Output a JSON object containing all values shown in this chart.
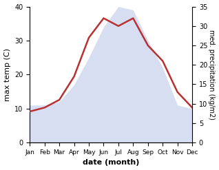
{
  "months": [
    "Jan",
    "Feb",
    "Mar",
    "Apr",
    "May",
    "Jun",
    "Jul",
    "Aug",
    "Sep",
    "Oct",
    "Nov",
    "Dec"
  ],
  "max_temp": [
    11,
    11,
    12,
    17,
    25,
    34,
    40,
    39,
    30,
    22,
    11,
    10
  ],
  "precipitation": [
    8,
    9,
    11,
    17,
    27,
    32,
    30,
    32,
    25,
    21,
    13,
    9
  ],
  "temp_fill_color": "#b8c4e8",
  "temp_fill_alpha": 0.55,
  "precip_color": "#b83030",
  "xlabel": "date (month)",
  "ylabel_left": "max temp (C)",
  "ylabel_right": "med. precipitation (kg/m2)",
  "ylim_left": [
    0,
    40
  ],
  "ylim_right": [
    0,
    35
  ],
  "yticks_left": [
    0,
    10,
    20,
    30,
    40
  ],
  "yticks_right": [
    0,
    5,
    10,
    15,
    20,
    25,
    30,
    35
  ],
  "bg_color": "#ffffff"
}
